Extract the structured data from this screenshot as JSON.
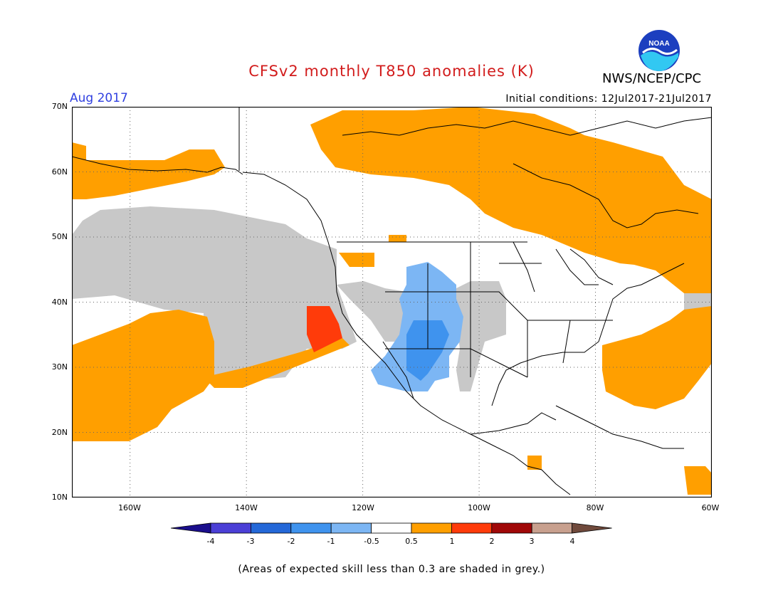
{
  "header": {
    "title": "CFSv2 monthly T850 anomalies (K)",
    "valid_month": "Aug 2017",
    "agency": "NWS/NCEP/CPC",
    "logo_text": "NOAA",
    "initial_conditions": "Initial conditions: 12Jul2017-21Jul2017"
  },
  "map": {
    "lat_labels": [
      "70N",
      "60N",
      "50N",
      "40N",
      "30N",
      "20N",
      "10N"
    ],
    "lon_labels": [
      "160W",
      "140W",
      "120W",
      "100W",
      "80W",
      "60W"
    ],
    "grid_style": "dotted",
    "no_skill_color": "#c8c8c8"
  },
  "colorbar": {
    "labels": [
      "-4",
      "-3",
      "-2",
      "-1",
      "-0.5",
      "0.5",
      "1",
      "2",
      "3",
      "4"
    ],
    "colors": [
      "#1a0e8c",
      "#4b3fd6",
      "#2468d8",
      "#3f93ee",
      "#7cb6f4",
      "#ffffff",
      "#ff9f00",
      "#ff3b0a",
      "#a00808",
      "#c8a08e",
      "#704a3c"
    ]
  },
  "footnote": "(Areas of expected skill less than 0.3 are shaded in grey.)"
}
